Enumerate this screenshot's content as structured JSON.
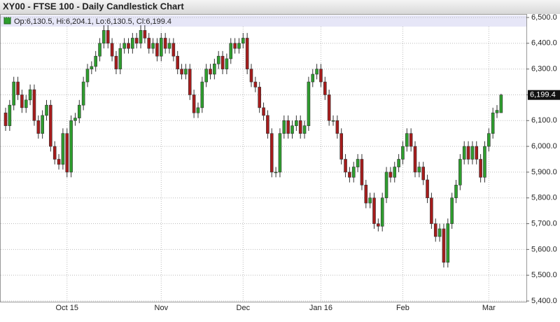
{
  "chart_data": {
    "type": "candlestick",
    "title": "XY00 - FTSE 100 - Daily Candlestick Chart",
    "legend": "Op:6,130.5, Hi:6,204.1, Lo:6,130.5, Cl:6,199.4",
    "up_color": "#2e9e2e",
    "down_color": "#a61c1c",
    "categories": [
      null,
      null,
      null,
      null,
      null,
      null,
      null,
      null,
      null,
      null,
      null,
      null,
      null,
      null,
      null,
      "Oct 15",
      null,
      null,
      null,
      null,
      null,
      null,
      null,
      null,
      null,
      null,
      null,
      null,
      null,
      null,
      null,
      null,
      null,
      null,
      null,
      null,
      null,
      null,
      "Nov",
      null,
      null,
      null,
      null,
      null,
      null,
      null,
      null,
      null,
      null,
      null,
      null,
      null,
      null,
      null,
      null,
      null,
      null,
      null,
      "Dec",
      null,
      null,
      null,
      null,
      null,
      null,
      null,
      null,
      null,
      null,
      null,
      null,
      null,
      null,
      null,
      null,
      null,
      null,
      "Jan 16",
      null,
      null,
      null,
      null,
      null,
      null,
      null,
      null,
      null,
      null,
      null,
      null,
      null,
      null,
      null,
      null,
      null,
      null,
      null,
      "Feb",
      null,
      null,
      null,
      null,
      null,
      null,
      null,
      null,
      null,
      null,
      null,
      null,
      null,
      null,
      null,
      null,
      null,
      null,
      null,
      null,
      "Mar",
      null,
      null,
      null
    ],
    "open": [
      6130,
      6080,
      6160,
      6250,
      6200,
      6150,
      6180,
      6220,
      6100,
      6050,
      6120,
      6160,
      6000,
      5950,
      5930,
      6050,
      5900,
      6100,
      6110,
      6160,
      6250,
      6300,
      6310,
      6350,
      6400,
      6450,
      6400,
      6350,
      6300,
      6380,
      6400,
      6380,
      6420,
      6400,
      6450,
      6420,
      6380,
      6400,
      6350,
      6420,
      6380,
      6400,
      6350,
      6300,
      6280,
      6300,
      6200,
      6130,
      6150,
      6250,
      6300,
      6280,
      6320,
      6350,
      6300,
      6340,
      6400,
      6380,
      6400,
      6420,
      6300,
      6250,
      6230,
      6150,
      6120,
      6050,
      5900,
      5900,
      6050,
      6100,
      6050,
      6080,
      6100,
      6050,
      6080,
      6250,
      6280,
      6300,
      6250,
      6200,
      6100,
      6100,
      6050,
      5950,
      5900,
      5880,
      5920,
      5950,
      5850,
      5780,
      5800,
      5700,
      5690,
      5800,
      5900,
      5880,
      5920,
      5950,
      6000,
      6050,
      6000,
      5900,
      5920,
      5870,
      5800,
      5700,
      5650,
      5680,
      5550,
      5700,
      5800,
      5850,
      5950,
      6000,
      5950,
      6000,
      5950,
      5880,
      6000,
      6050,
      6130,
      6130.5
    ],
    "high": [
      6150,
      6180,
      6270,
      6270,
      6220,
      6200,
      6240,
      6240,
      6120,
      6140,
      6180,
      6180,
      6020,
      5970,
      6070,
      6070,
      6120,
      6130,
      6180,
      6270,
      6320,
      6330,
      6370,
      6420,
      6470,
      6470,
      6420,
      6370,
      6400,
      6420,
      6420,
      6440,
      6440,
      6470,
      6470,
      6440,
      6420,
      6420,
      6440,
      6440,
      6420,
      6420,
      6370,
      6320,
      6320,
      6320,
      6220,
      6170,
      6270,
      6320,
      6320,
      6340,
      6370,
      6370,
      6360,
      6420,
      6420,
      6420,
      6440,
      6440,
      6320,
      6270,
      6250,
      6170,
      6140,
      6070,
      5920,
      6070,
      6120,
      6120,
      6100,
      6120,
      6120,
      6100,
      6270,
      6300,
      6320,
      6320,
      6270,
      6220,
      6120,
      6120,
      6070,
      5970,
      5920,
      5940,
      5970,
      5970,
      5870,
      5820,
      5820,
      5720,
      5820,
      5920,
      5920,
      5940,
      5970,
      6020,
      6070,
      6070,
      6020,
      5940,
      5940,
      5890,
      5820,
      5720,
      5700,
      5700,
      5720,
      5820,
      5870,
      5970,
      6020,
      6020,
      6020,
      6020,
      5970,
      6020,
      6070,
      6150,
      6160,
      6204.1
    ],
    "low": [
      6060,
      6060,
      6140,
      6180,
      6130,
      6130,
      6160,
      6080,
      6030,
      6030,
      6100,
      5980,
      5930,
      5910,
      5910,
      5880,
      5880,
      6080,
      6090,
      6140,
      6230,
      6280,
      6290,
      6330,
      6380,
      6380,
      6330,
      6280,
      6280,
      6360,
      6360,
      6360,
      6380,
      6380,
      6400,
      6360,
      6360,
      6330,
      6330,
      6360,
      6360,
      6330,
      6280,
      6260,
      6260,
      6180,
      6110,
      6110,
      6130,
      6230,
      6260,
      6260,
      6300,
      6280,
      6280,
      6320,
      6360,
      6360,
      6380,
      6280,
      6230,
      6210,
      6130,
      6100,
      6030,
      5880,
      5880,
      5880,
      6030,
      6030,
      6030,
      6060,
      6030,
      6030,
      6060,
      6230,
      6260,
      6230,
      6180,
      6080,
      6080,
      6030,
      5930,
      5880,
      5860,
      5860,
      5900,
      5830,
      5760,
      5760,
      5680,
      5670,
      5670,
      5780,
      5860,
      5860,
      5900,
      5930,
      5980,
      5980,
      5880,
      5880,
      5850,
      5780,
      5680,
      5630,
      5630,
      5530,
      5530,
      5680,
      5780,
      5830,
      5930,
      5930,
      5930,
      5930,
      5860,
      5860,
      5980,
      6030,
      6110,
      6130.5
    ],
    "close": [
      6080,
      6160,
      6250,
      6200,
      6150,
      6180,
      6220,
      6100,
      6050,
      6120,
      6160,
      6000,
      5950,
      5930,
      6050,
      5900,
      6100,
      6110,
      6160,
      6250,
      6300,
      6310,
      6350,
      6400,
      6450,
      6400,
      6350,
      6300,
      6380,
      6400,
      6380,
      6420,
      6400,
      6450,
      6420,
      6380,
      6400,
      6350,
      6420,
      6380,
      6400,
      6350,
      6300,
      6280,
      6300,
      6200,
      6130,
      6150,
      6250,
      6300,
      6280,
      6320,
      6350,
      6300,
      6340,
      6400,
      6380,
      6400,
      6420,
      6300,
      6250,
      6230,
      6150,
      6120,
      6050,
      5900,
      5900,
      6050,
      6100,
      6050,
      6080,
      6100,
      6050,
      6080,
      6250,
      6280,
      6300,
      6250,
      6200,
      6100,
      6100,
      6050,
      5950,
      5900,
      5880,
      5920,
      5950,
      5850,
      5780,
      5800,
      5700,
      5690,
      5800,
      5900,
      5880,
      5920,
      5950,
      6000,
      6050,
      6000,
      5900,
      5920,
      5870,
      5800,
      5700,
      5650,
      5680,
      5550,
      5700,
      5800,
      5850,
      5950,
      6000,
      5950,
      6000,
      5950,
      5880,
      6000,
      6050,
      6130,
      6140,
      6199.4
    ],
    "last_price": {
      "value": 6199.4,
      "label": "6,199.4"
    },
    "ylim": [
      5400,
      6500
    ],
    "yticks": [
      {
        "value": 5400,
        "label": "5,400.0"
      },
      {
        "value": 5500,
        "label": "5,500.0"
      },
      {
        "value": 5600,
        "label": "5,600.0"
      },
      {
        "value": 5700,
        "label": "5,700.0"
      },
      {
        "value": 5800,
        "label": "5,800.0"
      },
      {
        "value": 5900,
        "label": "5,900.0"
      },
      {
        "value": 6000,
        "label": "6,000.0"
      },
      {
        "value": 6100,
        "label": "6,100.0"
      },
      {
        "value": 6200,
        "label": "6,200.0"
      },
      {
        "value": 6300,
        "label": "6,300.0"
      },
      {
        "value": 6400,
        "label": "6,400.0"
      },
      {
        "value": 6500,
        "label": "6,500.0"
      }
    ],
    "grid": true
  }
}
